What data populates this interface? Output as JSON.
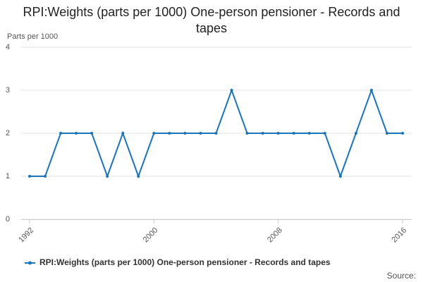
{
  "chart_data": {
    "type": "line",
    "title": "RPI:Weights (parts per 1000) One-person pensioner - Records and tapes",
    "y_label": "Parts per 1000",
    "source": "Source:",
    "x": [
      1992,
      1993,
      1994,
      1995,
      1996,
      1997,
      1998,
      1999,
      2000,
      2001,
      2002,
      2003,
      2004,
      2005,
      2006,
      2007,
      2008,
      2009,
      2010,
      2011,
      2012,
      2013,
      2014,
      2015,
      2016
    ],
    "series": [
      {
        "name": "RPI:Weights (parts per 1000) One-person pensioner - Records and tapes",
        "color": "#1a75bb",
        "values": [
          1,
          1,
          2,
          2,
          2,
          1,
          2,
          1,
          2,
          2,
          2,
          2,
          2,
          3,
          2,
          2,
          2,
          2,
          2,
          2,
          1,
          2,
          3,
          2,
          2
        ]
      }
    ],
    "xlim": [
      1992,
      2016
    ],
    "xticks": [
      1992,
      2000,
      2008,
      2016
    ],
    "ylim": [
      0,
      4
    ],
    "yticks": [
      0,
      1,
      2,
      3,
      4
    ],
    "grid": true,
    "legend": "bottom"
  }
}
